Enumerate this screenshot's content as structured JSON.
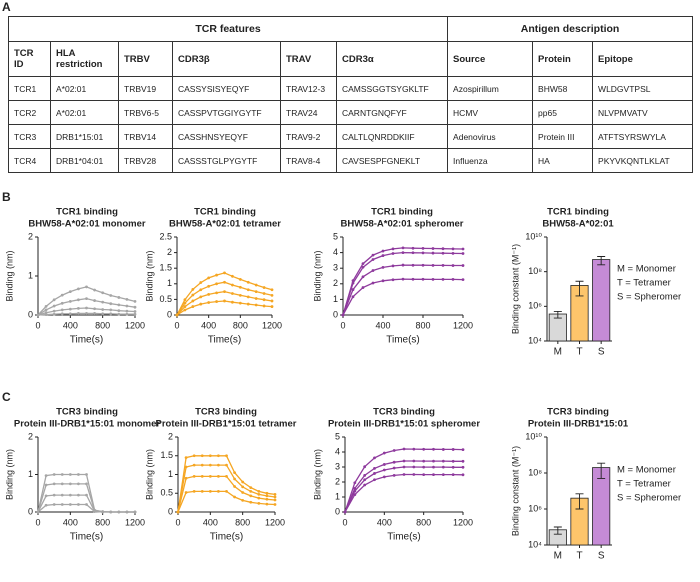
{
  "panel_labels": [
    "A",
    "B",
    "C"
  ],
  "table": {
    "group_headers": [
      "TCR features",
      "Antigen description"
    ],
    "columns": [
      "TCR ID",
      "HLA restriction",
      "TRBV",
      "CDR3β",
      "TRAV",
      "CDR3α",
      "Source",
      "Protein",
      "Epitope"
    ],
    "rows": [
      [
        "TCR1",
        "A*02:01",
        "TRBV19",
        "CASSYSISYEQYF",
        "TRAV12-3",
        "CAMSSGGTSYGKLTF",
        "Azospirillum",
        "BHW58",
        "WLDGVTPSL"
      ],
      [
        "TCR2",
        "A*02:01",
        "TRBV6-5",
        "CASSPVTGGIYGYTF",
        "TRAV24",
        "CARNTGNQFYF",
        "HCMV",
        "pp65",
        "NLVPMVATV"
      ],
      [
        "TCR3",
        "DRB1*15:01",
        "TRBV14",
        "CASSHNSYEQYF",
        "TRAV9-2",
        "CALTLQNRDDKIIF",
        "Adenovirus",
        "Protein III",
        "ATFTSYRSWYLA"
      ],
      [
        "TCR4",
        "DRB1*04:01",
        "TRBV28",
        "CASSSTGLPYGYTF",
        "TRAV8-4",
        "CAVSESPFGNEKLT",
        "Influenza",
        "HA",
        "PKYVKQNTLKLAT"
      ]
    ]
  },
  "chart_data": [
    {
      "type": "line",
      "title": [
        "TCR1 binding",
        "BHW58-A*02:01 monomer"
      ],
      "xlabel": "Time(s)",
      "ylabel": "Binding (nm)",
      "color": "#a6a6a6",
      "x": [
        0,
        100,
        200,
        300,
        400,
        500,
        600,
        700,
        800,
        900,
        1000,
        1100,
        1200
      ],
      "xlim": [
        0,
        1200
      ],
      "xticks": [
        0,
        400,
        800,
        1200
      ],
      "ylim": [
        0,
        2
      ],
      "yticks": [
        0,
        1,
        2
      ],
      "series": [
        {
          "values": [
            0,
            0.22,
            0.39,
            0.51,
            0.6,
            0.67,
            0.72,
            0.64,
            0.57,
            0.5,
            0.45,
            0.4,
            0.35
          ]
        },
        {
          "values": [
            0,
            0.13,
            0.23,
            0.3,
            0.35,
            0.39,
            0.42,
            0.37,
            0.33,
            0.29,
            0.26,
            0.23,
            0.2
          ]
        },
        {
          "values": [
            0,
            0.06,
            0.1,
            0.13,
            0.15,
            0.17,
            0.18,
            0.16,
            0.14,
            0.13,
            0.11,
            0.1,
            0.09
          ]
        },
        {
          "values": [
            0,
            0.01,
            0.02,
            0.03,
            0.03,
            0.04,
            0.04,
            0.04,
            0.03,
            0.03,
            0.02,
            0.02,
            0.02
          ]
        }
      ]
    },
    {
      "type": "line",
      "title": [
        "TCR1 binding",
        "BHW58-A*02:01 tetramer"
      ],
      "xlabel": "Time(s)",
      "ylabel": "Binding (nm)",
      "color": "#f5a623",
      "x": [
        0,
        100,
        200,
        300,
        400,
        500,
        600,
        700,
        800,
        900,
        1000,
        1100,
        1200
      ],
      "xlim": [
        0,
        1200
      ],
      "xticks": [
        0,
        400,
        800,
        1200
      ],
      "ylim": [
        0,
        2.5
      ],
      "yticks": [
        0,
        0.5,
        1,
        1.5,
        2,
        2.5
      ],
      "series": [
        {
          "values": [
            0,
            0.49,
            0.82,
            1.04,
            1.19,
            1.28,
            1.35,
            1.24,
            1.14,
            1.05,
            0.96,
            0.88,
            0.81
          ]
        },
        {
          "values": [
            0,
            0.38,
            0.64,
            0.81,
            0.92,
            1.0,
            1.05,
            0.96,
            0.89,
            0.81,
            0.75,
            0.69,
            0.63
          ]
        },
        {
          "values": [
            0,
            0.27,
            0.45,
            0.58,
            0.66,
            0.71,
            0.75,
            0.69,
            0.63,
            0.58,
            0.53,
            0.49,
            0.45
          ]
        },
        {
          "values": [
            0,
            0.16,
            0.27,
            0.35,
            0.4,
            0.43,
            0.45,
            0.41,
            0.38,
            0.35,
            0.32,
            0.29,
            0.27
          ]
        }
      ]
    },
    {
      "type": "line",
      "title": [
        "TCR1 binding",
        "BHW58-A*02:01 spheromer"
      ],
      "xlabel": "Time(s)",
      "ylabel": "Binding (nm)",
      "color": "#8e3a9d",
      "x": [
        0,
        100,
        200,
        300,
        400,
        500,
        600,
        700,
        800,
        900,
        1000,
        1100,
        1200
      ],
      "xlim": [
        0,
        1200
      ],
      "xticks": [
        0,
        400,
        800,
        1200
      ],
      "ylim": [
        0,
        5
      ],
      "yticks": [
        0,
        1,
        2,
        3,
        4,
        5
      ],
      "series": [
        {
          "values": [
            0,
            2.2,
            3.29,
            3.84,
            4.1,
            4.24,
            4.3,
            4.28,
            4.27,
            4.26,
            4.25,
            4.24,
            4.23
          ]
        },
        {
          "values": [
            0,
            2.04,
            3.06,
            3.56,
            3.81,
            3.94,
            4.0,
            3.99,
            3.98,
            3.97,
            3.96,
            3.95,
            3.94
          ]
        },
        {
          "values": [
            0,
            1.63,
            2.45,
            2.85,
            3.05,
            3.15,
            3.2,
            3.19,
            3.19,
            3.18,
            3.18,
            3.17,
            3.17
          ]
        },
        {
          "values": [
            0,
            1.17,
            1.76,
            2.05,
            2.19,
            2.26,
            2.3,
            2.29,
            2.29,
            2.28,
            2.28,
            2.28,
            2.27
          ]
        }
      ]
    },
    {
      "type": "bar",
      "title": [
        "TCR1 binding",
        "BHW58-A*02:01"
      ],
      "ylabel": "Binding constant (M⁻¹)",
      "log_scale": true,
      "categories": [
        "M",
        "T",
        "S"
      ],
      "colors": [
        "#d9d9d9",
        "#fdc56b",
        "#c58bd6"
      ],
      "values": [
        360000,
        16000000,
        500000000
      ],
      "errors": [
        150000,
        12000000,
        250000000
      ],
      "ylim": [
        10000,
        10000000000
      ],
      "yticks": [
        {
          "value": 10000,
          "label": "10⁴"
        },
        {
          "value": 1000000,
          "label": "10⁶"
        },
        {
          "value": 100000000,
          "label": "10⁸"
        },
        {
          "value": 10000000000,
          "label": "10¹⁰"
        }
      ],
      "annotations": [
        "M = Monomer",
        "T = Tetramer",
        "S = Spheromer"
      ]
    },
    {
      "type": "line",
      "title": [
        "TCR3 binding",
        "Protein III-DRB1*15:01 monomer"
      ],
      "xlabel": "Time(s)",
      "ylabel": "Binding (nm)",
      "color": "#a6a6a6",
      "x": [
        0,
        100,
        200,
        300,
        400,
        500,
        600,
        700,
        800,
        900,
        1000,
        1100,
        1200
      ],
      "xlim": [
        0,
        1200
      ],
      "xticks": [
        0,
        400,
        800,
        1200
      ],
      "ylim": [
        0,
        2
      ],
      "yticks": [
        0,
        1,
        2
      ],
      "series": [
        {
          "values": [
            0,
            0.97,
            1.0,
            1.0,
            1.0,
            1.0,
            1.0,
            0.05,
            0.01,
            0,
            0,
            0,
            0
          ]
        },
        {
          "values": [
            0,
            0.72,
            0.75,
            0.75,
            0.75,
            0.75,
            0.75,
            0.04,
            0.01,
            0,
            0,
            0,
            0
          ]
        },
        {
          "values": [
            0,
            0.43,
            0.45,
            0.45,
            0.45,
            0.45,
            0.45,
            0.02,
            0,
            0,
            0,
            0,
            0
          ]
        },
        {
          "values": [
            0,
            0.18,
            0.2,
            0.2,
            0.2,
            0.2,
            0.2,
            0.01,
            0,
            0,
            0,
            0,
            0
          ]
        }
      ]
    },
    {
      "type": "line",
      "title": [
        "TCR3 binding",
        "Protein III-DRB1*15:01 tetramer"
      ],
      "xlabel": "Time(s)",
      "ylabel": "Binding (nm)",
      "color": "#f5a623",
      "x": [
        0,
        100,
        200,
        300,
        400,
        500,
        600,
        700,
        800,
        900,
        1000,
        1100,
        1200
      ],
      "xlim": [
        0,
        1200
      ],
      "xticks": [
        0,
        400,
        800,
        1200
      ],
      "ylim": [
        0,
        2
      ],
      "yticks": [
        0,
        0.5,
        1,
        1.5,
        2
      ],
      "series": [
        {
          "values": [
            0,
            1.45,
            1.5,
            1.5,
            1.5,
            1.5,
            1.5,
            1.05,
            0.8,
            0.65,
            0.55,
            0.5,
            0.47
          ]
        },
        {
          "values": [
            0,
            1.2,
            1.25,
            1.25,
            1.25,
            1.25,
            1.25,
            0.88,
            0.67,
            0.55,
            0.47,
            0.43,
            0.4
          ]
        },
        {
          "values": [
            0,
            0.9,
            0.95,
            0.95,
            0.95,
            0.95,
            0.95,
            0.68,
            0.52,
            0.43,
            0.37,
            0.34,
            0.32
          ]
        },
        {
          "values": [
            0,
            0.52,
            0.55,
            0.55,
            0.55,
            0.55,
            0.55,
            0.4,
            0.31,
            0.26,
            0.23,
            0.21,
            0.2
          ]
        }
      ]
    },
    {
      "type": "line",
      "title": [
        "TCR3 binding",
        "Protein III-DRB1*15:01 spheromer"
      ],
      "xlabel": "Time(s)",
      "ylabel": "Binding (nm)",
      "color": "#8e3a9d",
      "x": [
        0,
        100,
        200,
        300,
        400,
        500,
        600,
        700,
        800,
        900,
        1000,
        1100,
        1200
      ],
      "xlim": [
        0,
        1200
      ],
      "xticks": [
        0,
        400,
        800,
        1200
      ],
      "ylim": [
        0,
        5
      ],
      "yticks": [
        0,
        1,
        2,
        3,
        4,
        5
      ],
      "series": [
        {
          "values": [
            0,
            1.95,
            3.02,
            3.61,
            3.93,
            4.1,
            4.2,
            4.19,
            4.18,
            4.18,
            4.17,
            4.17,
            4.16
          ]
        },
        {
          "values": [
            0,
            1.57,
            2.44,
            2.91,
            3.17,
            3.32,
            3.4,
            3.4,
            3.39,
            3.39,
            3.39,
            3.38,
            3.38
          ]
        },
        {
          "values": [
            0,
            1.39,
            2.15,
            2.57,
            2.8,
            2.93,
            3.0,
            3.0,
            2.99,
            2.99,
            2.99,
            2.98,
            2.98
          ]
        },
        {
          "values": [
            0,
            1.16,
            1.8,
            2.15,
            2.34,
            2.44,
            2.5,
            2.5,
            2.49,
            2.49,
            2.49,
            2.49,
            2.48
          ]
        }
      ]
    },
    {
      "type": "bar",
      "title": [
        "TCR3 binding",
        "Protein III-DRB1*15:01"
      ],
      "ylabel": "Binding constant (M⁻¹)",
      "log_scale": true,
      "categories": [
        "M",
        "T",
        "S"
      ],
      "colors": [
        "#d9d9d9",
        "#fdc56b",
        "#c58bd6"
      ],
      "values": [
        70000,
        4000000,
        200000000
      ],
      "errors": [
        30000,
        3000000,
        150000000
      ],
      "ylim": [
        10000,
        10000000000
      ],
      "yticks": [
        {
          "value": 10000,
          "label": "10⁴"
        },
        {
          "value": 1000000,
          "label": "10⁶"
        },
        {
          "value": 100000000,
          "label": "10⁸"
        },
        {
          "value": 10000000000,
          "label": "10¹⁰"
        }
      ],
      "annotations": [
        "M = Monomer",
        "T = Tetramer",
        "S = Spheromer"
      ]
    }
  ]
}
